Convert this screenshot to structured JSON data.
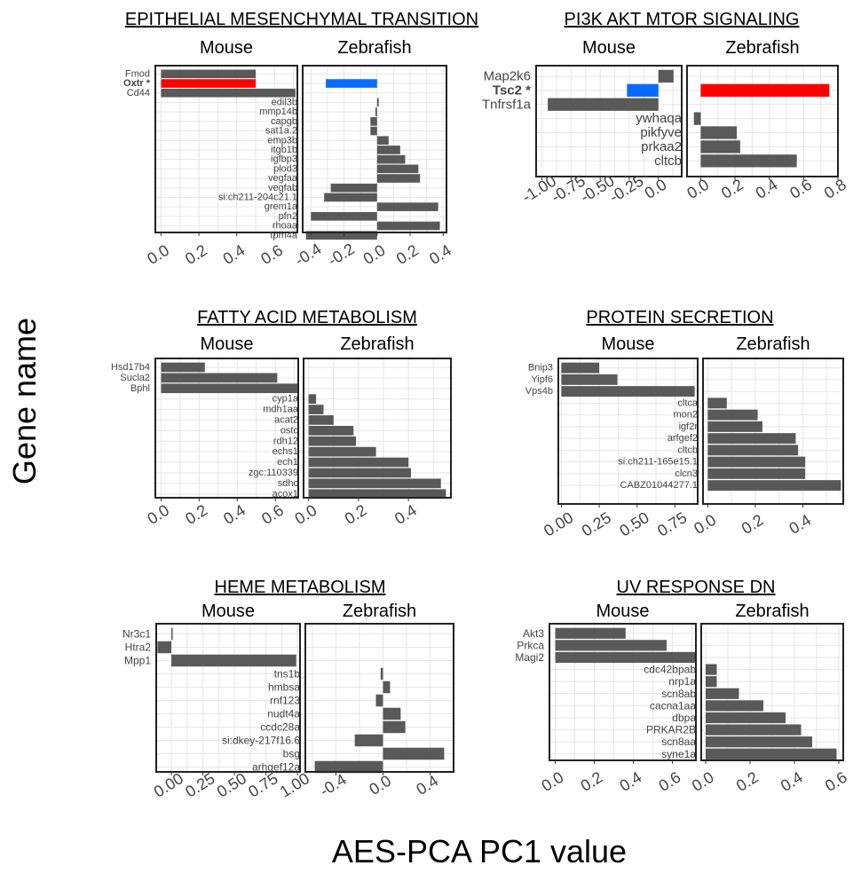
{
  "figure": {
    "y_axis_label": "Gene name",
    "x_axis_label": "AES-PCA PC1 value"
  },
  "colors": {
    "bar": "#595959",
    "highlight_up": "#ff0000",
    "highlight_down": "#0a6cff",
    "highlight_label": "#19b34a",
    "panel_border": "#222222",
    "grid": "#e6e6e6"
  },
  "chart_data": [
    {
      "type": "bar",
      "orientation": "horizontal",
      "title": "EPITHELIAL MESENCHYMAL TRANSITION",
      "panels": [
        {
          "name": "Mouse",
          "xlim": [
            -0.03,
            0.72
          ],
          "ticks": [
            0.0,
            0.2,
            0.4,
            0.6
          ],
          "tick_labels": [
            "0.0",
            "0.2",
            "0.4",
            "0.6"
          ],
          "genes": [
            "Fmod",
            "Oxtr *",
            "Cd44"
          ],
          "values": [
            0.5,
            0.5,
            0.71
          ],
          "highlight": [
            null,
            "up",
            null
          ]
        },
        {
          "name": "Zebrafish",
          "xlim": [
            -0.45,
            0.42
          ],
          "ticks": [
            -0.4,
            -0.2,
            0.0,
            0.2,
            0.4
          ],
          "tick_labels": [
            "-0.4",
            "-0.2",
            "0.0",
            "0.2",
            "0.4"
          ],
          "genes": [
            "edil3b",
            "mmp14b",
            "capgb",
            "sat1a.2",
            "emp3b",
            "itgb1b",
            "igfbp3",
            "plod3",
            "vegfaa",
            "vegfab",
            "si:ch211-204c21.1",
            "grem1a",
            "pfn2",
            "rhoaa",
            "tpm4a"
          ],
          "values": [
            0.01,
            -0.01,
            -0.04,
            -0.04,
            0.07,
            0.14,
            0.17,
            0.25,
            0.26,
            -0.28,
            -0.32,
            0.37,
            -0.4,
            0.38,
            -0.43
          ],
          "highlight": [
            null,
            null,
            null,
            null,
            null,
            null,
            null,
            null,
            null,
            null,
            null,
            null,
            null,
            null,
            null
          ],
          "extra": {
            "value": -0.31,
            "highlight": "down",
            "row": 1
          }
        }
      ]
    },
    {
      "type": "bar",
      "orientation": "horizontal",
      "title": "PI3K AKT MTOR SIGNALING",
      "panels": [
        {
          "name": "Mouse",
          "xlim": [
            -1.05,
            0.2
          ],
          "ticks": [
            -1.0,
            -0.75,
            -0.5,
            -0.25,
            0.0
          ],
          "tick_labels": [
            "-1.00",
            "-0.75",
            "-0.50",
            "-0.25",
            "0.0"
          ],
          "genes": [
            "Map2k6",
            "Tsc2 *",
            "Tnfrsf1a"
          ],
          "values": [
            0.13,
            -0.27,
            -0.95
          ],
          "highlight": [
            null,
            "down",
            null
          ]
        },
        {
          "name": "Zebrafish",
          "xlim": [
            -0.08,
            0.8
          ],
          "ticks": [
            0.0,
            0.2,
            0.4,
            0.6,
            0.8
          ],
          "tick_labels": [
            "0.0",
            "0.2",
            "0.4",
            "0.6",
            "0.8"
          ],
          "genes": [
            "ywhaqa",
            "pikfyve",
            "prkaa2",
            "cltcb"
          ],
          "values": [
            -0.04,
            0.21,
            0.23,
            0.56
          ],
          "highlight": [
            null,
            null,
            null,
            null
          ],
          "extra": {
            "value": 0.75,
            "highlight": "up",
            "row": 1
          }
        }
      ]
    },
    {
      "type": "bar",
      "orientation": "horizontal",
      "title": "FATTY ACID METABOLISM",
      "panels": [
        {
          "name": "Mouse",
          "xlim": [
            -0.03,
            0.72
          ],
          "ticks": [
            0.0,
            0.2,
            0.4,
            0.6
          ],
          "tick_labels": [
            "0.0",
            "0.2",
            "0.4",
            "0.6"
          ],
          "genes": [
            "Hsd17b4",
            "Sucla2",
            "Bphl"
          ],
          "values": [
            0.23,
            0.61,
            0.72
          ],
          "highlight": [
            null,
            null,
            null
          ]
        },
        {
          "name": "Zebrafish",
          "xlim": [
            -0.02,
            0.57
          ],
          "ticks": [
            0.0,
            0.2,
            0.4
          ],
          "tick_labels": [
            "0.0",
            "0.2",
            "0.4"
          ],
          "genes": [
            "cyp1a",
            "mdh1aa",
            "acat2",
            "ostc",
            "rdh12",
            "echs1",
            "ech1",
            "zgc:110339",
            "sdhc",
            "acox1"
          ],
          "values": [
            0.03,
            0.06,
            0.1,
            0.18,
            0.19,
            0.27,
            0.4,
            0.41,
            0.53,
            0.55
          ],
          "highlight": [
            null,
            null,
            null,
            null,
            null,
            null,
            null,
            null,
            null,
            null
          ]
        }
      ]
    },
    {
      "type": "bar",
      "orientation": "horizontal",
      "title": "PROTEIN SECRETION",
      "panels": [
        {
          "name": "Mouse",
          "xlim": [
            -0.02,
            0.9
          ],
          "ticks": [
            0.0,
            0.25,
            0.5,
            0.75
          ],
          "tick_labels": [
            "0.00",
            "0.25",
            "0.50",
            "0.75"
          ],
          "genes": [
            "Bnip3",
            "Yipf6",
            "Vps4b"
          ],
          "values": [
            0.25,
            0.37,
            0.88
          ],
          "highlight": [
            null,
            null,
            null
          ]
        },
        {
          "name": "Zebrafish",
          "xlim": [
            -0.02,
            0.57
          ],
          "ticks": [
            0.0,
            0.2,
            0.4
          ],
          "tick_labels": [
            "0.0",
            "0.2",
            "0.4"
          ],
          "genes": [
            "cltca",
            "mon2",
            "igf2r",
            "arfgef2",
            "cltcb",
            "si:ch211-165e15.1",
            "clcn3",
            "CABZ01044277.1"
          ],
          "values": [
            0.08,
            0.21,
            0.23,
            0.37,
            0.38,
            0.41,
            0.41,
            0.56
          ],
          "highlight": [
            null,
            null,
            null,
            null,
            null,
            null,
            null,
            null
          ]
        }
      ]
    },
    {
      "type": "bar",
      "orientation": "horizontal",
      "title": "HEME METABOLISM",
      "panels": [
        {
          "name": "Mouse",
          "xlim": [
            -0.12,
            1.02
          ],
          "ticks": [
            0.0,
            0.25,
            0.5,
            0.75,
            1.0
          ],
          "tick_labels": [
            "0.00",
            "0.25",
            "0.50",
            "0.75",
            "1.00"
          ],
          "genes": [
            "Nr3c1",
            "Htra2",
            "Mpp1"
          ],
          "values": [
            0.01,
            -0.11,
            0.99
          ],
          "highlight": [
            null,
            null,
            null
          ]
        },
        {
          "name": "Zebrafish",
          "xlim": [
            -0.66,
            0.6
          ],
          "ticks": [
            -0.4,
            0.0,
            0.4
          ],
          "tick_labels": [
            "-0.4",
            "0.0",
            "0.4"
          ],
          "genes": [
            "tns1b",
            "hmbsa",
            "rnf123",
            "nudt4a",
            "ccdc28a",
            "si:dkey-217f16.6",
            "bsg",
            "arhgef12a"
          ],
          "values": [
            -0.02,
            0.06,
            -0.06,
            0.15,
            0.19,
            -0.24,
            0.52,
            -0.58
          ],
          "highlight": [
            null,
            null,
            null,
            null,
            null,
            null,
            null,
            null
          ]
        }
      ]
    },
    {
      "type": "bar",
      "orientation": "horizontal",
      "title": "UV RESPONSE DN",
      "panels": [
        {
          "name": "Mouse",
          "xlim": [
            -0.03,
            0.72
          ],
          "ticks": [
            0.0,
            0.2,
            0.4,
            0.6
          ],
          "tick_labels": [
            "0.0",
            "0.2",
            "0.4",
            "0.6"
          ],
          "genes": [
            "Akt3",
            "Prkca",
            "Magi2"
          ],
          "values": [
            0.36,
            0.57,
            0.72
          ],
          "highlight": [
            null,
            null,
            null
          ]
        },
        {
          "name": "Zebrafish",
          "xlim": [
            -0.02,
            0.62
          ],
          "ticks": [
            0.0,
            0.2,
            0.4,
            0.6
          ],
          "tick_labels": [
            "0.0",
            "0.2",
            "0.4",
            "0.6"
          ],
          "genes": [
            "cdc42bpab",
            "nrp1a",
            "scn8ab",
            "cacna1aa",
            "dbpa",
            "PRKAR2B",
            "scn8aa",
            "syne1a"
          ],
          "values": [
            0.05,
            0.05,
            0.15,
            0.26,
            0.36,
            0.43,
            0.48,
            0.59
          ],
          "highlight": [
            null,
            null,
            null,
            null,
            null,
            null,
            null,
            null
          ]
        }
      ]
    }
  ]
}
